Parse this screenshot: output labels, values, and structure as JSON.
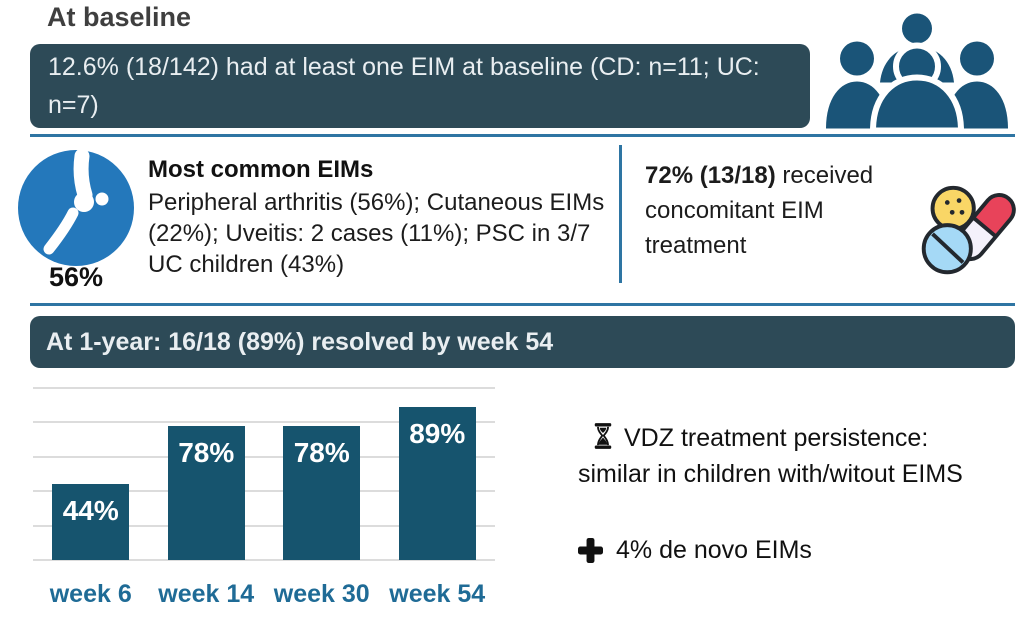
{
  "page": {
    "title": "At baseline"
  },
  "colors": {
    "banner_bg": "#2d4a57",
    "banner_text": "#e9eef1",
    "divider_blue": "#2e75a3",
    "icon_dark_teal": "#1a5478",
    "knee_circle_blue": "#2478bb",
    "bar_teal": "#16546e",
    "week_label_blue": "#1f6b96",
    "title_gray": "#3f3f3f"
  },
  "baseline_banner": {
    "text": "12.6% (18/142) had at least one EIM at baseline (CD: n=11; UC: n=7)"
  },
  "most_common_panel": {
    "stat": "56%",
    "heading": "Most common EIMs",
    "details": "Peripheral arthritis (56%); Cutaneous EIMs (22%); Uveitis: 2 cases (11%); PSC in 3/7 UC children (43%)"
  },
  "treatment_panel": {
    "stat": "72% (13/18)",
    "text": " received concomitant EIM treatment"
  },
  "one_year_banner": {
    "text": "At 1-year: 16/18 (89%) resolved by week 54"
  },
  "chart_data": {
    "type": "bar",
    "categories": [
      "week 6",
      "week 14",
      "week 30",
      "week 54"
    ],
    "values": [
      44,
      78,
      78,
      89
    ],
    "value_labels": [
      "44%",
      "78%",
      "78%",
      "89%"
    ],
    "title": "At 1-year: 16/18 (89%) resolved by week 54",
    "xlabel": "",
    "ylabel": "",
    "ylim": [
      0,
      100
    ],
    "gridlines": [
      0,
      20,
      40,
      60,
      80,
      100
    ],
    "grid": true,
    "legend": false,
    "bar_color": "#16546e",
    "value_label_color": "#ffffff",
    "category_color": "#1f6b96"
  },
  "notes": {
    "persistence": "VDZ treatment persistence: similar in children with/witout EIMS",
    "de_novo": "4% de novo EIMs"
  },
  "icons": {
    "people": "people-group-icon",
    "joint": "knee-joint-icon",
    "medication": "pills-icon",
    "hourglass": "hourglass-icon",
    "plus": "plus-icon"
  }
}
